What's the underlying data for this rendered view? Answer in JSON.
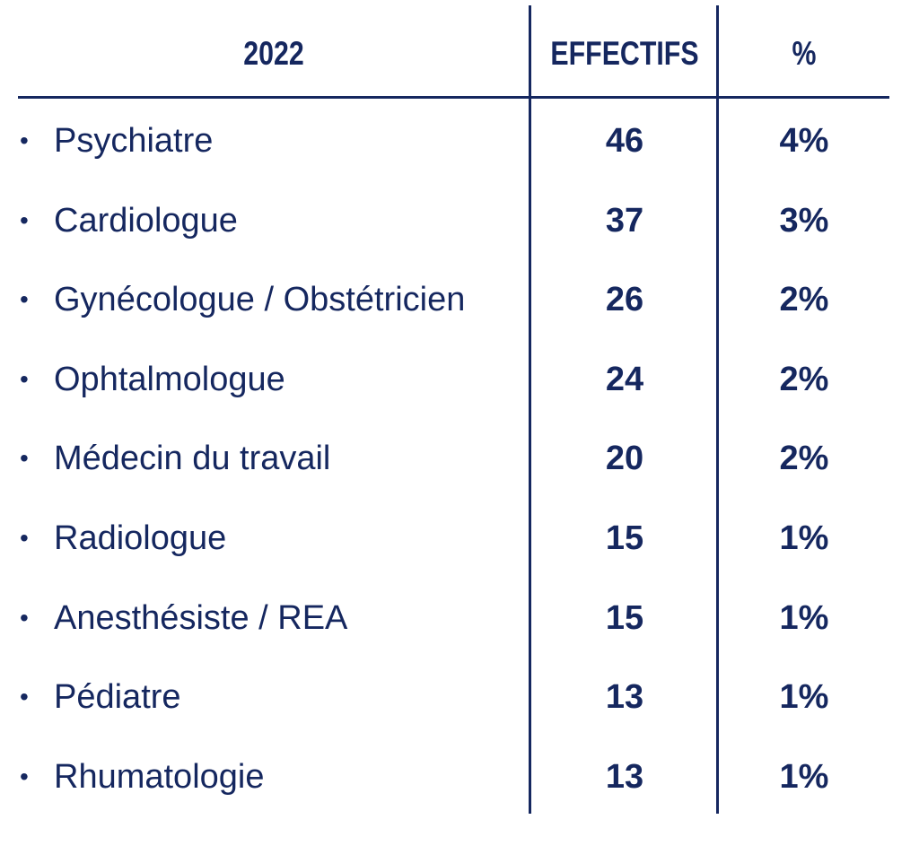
{
  "colors": {
    "text": "#15275f",
    "lines": "#15275f",
    "background": "#ffffff"
  },
  "chart_data": {
    "type": "table",
    "columns": [
      "2022",
      "EFFECTIFS",
      "%"
    ],
    "rows": [
      {
        "label": "Psychiatre",
        "effectifs": 46,
        "effectifs_text": "46",
        "pct_text": "4%"
      },
      {
        "label": "Cardiologue",
        "effectifs": 37,
        "effectifs_text": "37",
        "pct_text": "3%"
      },
      {
        "label": "Gynécologue / Obstétricien",
        "effectifs": 26,
        "effectifs_text": "26",
        "pct_text": "2%"
      },
      {
        "label": "Ophtalmologue",
        "effectifs": 24,
        "effectifs_text": "24",
        "pct_text": "2%"
      },
      {
        "label": "Médecin du travail",
        "effectifs": 20,
        "effectifs_text": "20",
        "pct_text": "2%"
      },
      {
        "label": "Radiologue",
        "effectifs": 15,
        "effectifs_text": "15",
        "pct_text": "1%"
      },
      {
        "label": "Anesthésiste / REA",
        "effectifs": 15,
        "effectifs_text": "15",
        "pct_text": "1%"
      },
      {
        "label": "Pédiatre",
        "effectifs": 13,
        "effectifs_text": "13",
        "pct_text": "1%"
      },
      {
        "label": "Rhumatologie",
        "effectifs": 13,
        "effectifs_text": "13",
        "pct_text": "1%"
      }
    ]
  }
}
